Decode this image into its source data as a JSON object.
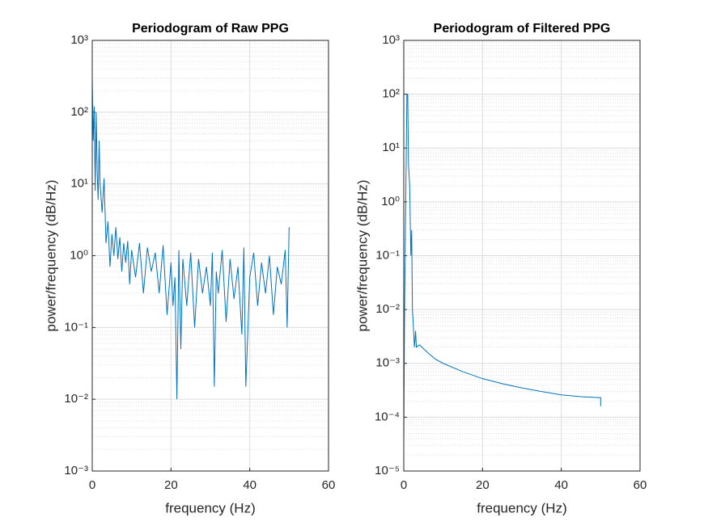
{
  "chart_data": [
    {
      "type": "line",
      "title": "Periodogram of Raw PPG",
      "xlabel": "frequency (Hz)",
      "ylabel": "power/frequency (dB/Hz)",
      "yscale": "log",
      "grid": true,
      "minor_grid": true,
      "color": "#0072bd",
      "xlim": [
        0,
        60
      ],
      "xticks": [
        0,
        20,
        40,
        60
      ],
      "ylim": [
        0.001,
        1000
      ],
      "yticks": [
        {
          "value": 0.001,
          "label": "10⁻³"
        },
        {
          "value": 0.01,
          "label": "10⁻²"
        },
        {
          "value": 0.1,
          "label": "10⁻¹"
        },
        {
          "value": 1,
          "label": "10⁰"
        },
        {
          "value": 10,
          "label": "10¹"
        },
        {
          "value": 100,
          "label": "10²"
        },
        {
          "value": 1000,
          "label": "10³"
        }
      ],
      "x": [
        0,
        0.25,
        0.5,
        0.75,
        1,
        1.25,
        1.5,
        1.75,
        2,
        2.5,
        3,
        3.5,
        4,
        4.5,
        5,
        5.5,
        6,
        6.5,
        7,
        7.5,
        8,
        8.5,
        9,
        9.5,
        10,
        11,
        12,
        13,
        14,
        15,
        16,
        17,
        18,
        19,
        20,
        20.5,
        21,
        21.5,
        22,
        22.5,
        23,
        24,
        25,
        26,
        27,
        28,
        29,
        30,
        30.5,
        31,
        31.5,
        32,
        33,
        34,
        35,
        36,
        37,
        38,
        38.5,
        39,
        40,
        41,
        42,
        43,
        44,
        45,
        46,
        47,
        48,
        49,
        49.5,
        50
      ],
      "values": [
        300,
        40,
        120,
        8,
        100,
        15,
        6,
        40,
        10,
        4,
        12,
        1.5,
        3,
        0.7,
        2,
        1,
        2.5,
        0.9,
        1.8,
        0.6,
        1.5,
        0.8,
        1.6,
        0.4,
        1.2,
        0.5,
        1.5,
        0.3,
        1.3,
        0.6,
        1.1,
        0.3,
        1.4,
        0.15,
        0.8,
        0.2,
        0.5,
        0.01,
        1.2,
        0.05,
        0.9,
        0.2,
        1.1,
        0.1,
        0.9,
        0.3,
        0.7,
        0.2,
        1.1,
        0.015,
        0.6,
        0.3,
        1.2,
        0.12,
        0.9,
        0.25,
        0.7,
        0.08,
        1.3,
        0.015,
        0.5,
        1.1,
        0.2,
        0.8,
        0.3,
        1.0,
        0.15,
        0.7,
        0.4,
        1.2,
        0.1,
        2.5
      ]
    },
    {
      "type": "line",
      "title": "Periodogram of Filtered PPG",
      "xlabel": "frequency (Hz)",
      "ylabel": "power/frequency (dB/Hz)",
      "yscale": "log",
      "grid": true,
      "minor_grid": true,
      "color": "#0072bd",
      "xlim": [
        0,
        60
      ],
      "xticks": [
        0,
        20,
        40,
        60
      ],
      "ylim": [
        1e-05,
        1000
      ],
      "yticks": [
        {
          "value": 1e-05,
          "label": "10⁻⁵"
        },
        {
          "value": 0.0001,
          "label": "10⁻⁴"
        },
        {
          "value": 0.001,
          "label": "10⁻³"
        },
        {
          "value": 0.01,
          "label": "10⁻²"
        },
        {
          "value": 0.1,
          "label": "10⁻¹"
        },
        {
          "value": 1,
          "label": "10⁰"
        },
        {
          "value": 10,
          "label": "10¹"
        },
        {
          "value": 100,
          "label": "10²"
        },
        {
          "value": 1000,
          "label": "10³"
        }
      ],
      "x": [
        0,
        0.2,
        0.5,
        0.8,
        1,
        1.2,
        1.5,
        1.8,
        2,
        2.2,
        2.5,
        2.7,
        3,
        3.2,
        4,
        6,
        8,
        10,
        15,
        20,
        25,
        30,
        35,
        40,
        45,
        50,
        50
      ],
      "values": [
        3e-05,
        0.01,
        1,
        100,
        100,
        5,
        2,
        0.1,
        0.3,
        0.01,
        0.004,
        0.002,
        0.004,
        0.002,
        0.0022,
        0.0016,
        0.0012,
        0.001,
        0.0007,
        0.00052,
        0.00042,
        0.00035,
        0.0003,
        0.00026,
        0.00024,
        0.00023,
        0.00016
      ]
    }
  ]
}
